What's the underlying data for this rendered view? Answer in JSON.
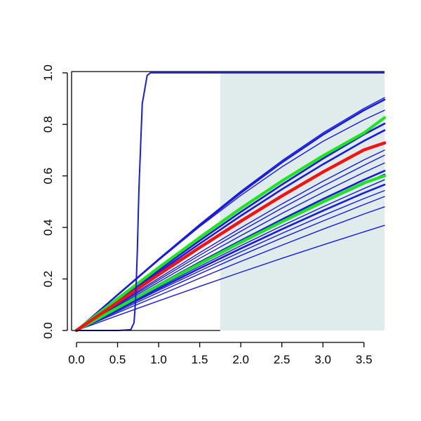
{
  "chart_data": {
    "type": "line",
    "title": "",
    "xlabel": "",
    "ylabel": "",
    "xlim": [
      -0.06,
      3.75
    ],
    "ylim": [
      0,
      1.005
    ],
    "x_ticks": [
      0.0,
      0.5,
      1.0,
      1.5,
      2.0,
      2.5,
      3.0,
      3.5
    ],
    "x_tick_labels": [
      "0.0",
      "0.5",
      "1.0",
      "1.5",
      "2.0",
      "2.5",
      "3.0",
      "3.5"
    ],
    "y_ticks": [
      0.0,
      0.2,
      0.4,
      0.6,
      0.8,
      1.0
    ],
    "y_tick_labels": [
      "0.0",
      "0.2",
      "0.4",
      "0.6",
      "0.8",
      "1.0"
    ],
    "grid": false,
    "legend": "none",
    "shaded_region": {
      "x_from": 1.75,
      "x_to": 3.75,
      "color": "#e0ecec"
    },
    "colors": {
      "blue": "#1a1adb",
      "green": "#1ee61e",
      "red": "#f01414"
    },
    "step_curve": {
      "color": "blue",
      "x": [
        0.0,
        0.5,
        0.66,
        0.7,
        0.72,
        0.74,
        0.76,
        0.8,
        0.86,
        0.9,
        1.0,
        3.75
      ],
      "values": [
        0.0,
        0.0,
        0.003,
        0.03,
        0.12,
        0.3,
        0.55,
        0.88,
        0.99,
        1.0,
        1.0,
        1.0
      ]
    },
    "series_x": [
      0.0,
      0.5,
      1.0,
      1.5,
      2.0,
      2.5,
      3.0,
      3.5,
      3.75
    ],
    "series": [
      {
        "color": "blue",
        "width": 1.4,
        "values": [
          0.0,
          0.138,
          0.273,
          0.403,
          0.524,
          0.635,
          0.734,
          0.818,
          0.855
        ]
      },
      {
        "color": "blue",
        "width": 1.4,
        "values": [
          0.0,
          0.14,
          0.278,
          0.412,
          0.54,
          0.659,
          0.767,
          0.862,
          0.904
        ]
      },
      {
        "color": "blue",
        "width": 2.6,
        "values": [
          0.0,
          0.138,
          0.275,
          0.408,
          0.534,
          0.652,
          0.76,
          0.855,
          0.896
        ]
      },
      {
        "color": "blue",
        "width": 2.6,
        "values": [
          0.0,
          0.114,
          0.227,
          0.337,
          0.445,
          0.548,
          0.645,
          0.736,
          0.777
        ]
      },
      {
        "color": "blue",
        "width": 2.6,
        "values": [
          0.0,
          0.118,
          0.235,
          0.349,
          0.46,
          0.566,
          0.667,
          0.761,
          0.803
        ]
      },
      {
        "color": "blue",
        "width": 1.4,
        "values": [
          0.0,
          0.099,
          0.196,
          0.292,
          0.385,
          0.475,
          0.56,
          0.641,
          0.68
        ]
      },
      {
        "color": "blue",
        "width": 1.4,
        "values": [
          0.0,
          0.095,
          0.188,
          0.28,
          0.368,
          0.454,
          0.536,
          0.614,
          0.65
        ]
      },
      {
        "color": "blue",
        "width": 1.4,
        "values": [
          0.0,
          0.102,
          0.203,
          0.302,
          0.398,
          0.491,
          0.579,
          0.662,
          0.7
        ]
      },
      {
        "color": "blue",
        "width": 2.6,
        "values": [
          0.0,
          0.087,
          0.173,
          0.258,
          0.34,
          0.42,
          0.497,
          0.57,
          0.605
        ]
      },
      {
        "color": "blue",
        "width": 2.6,
        "values": [
          0.0,
          0.09,
          0.178,
          0.265,
          0.349,
          0.431,
          0.51,
          0.585,
          0.62
        ]
      },
      {
        "color": "blue",
        "width": 1.4,
        "values": [
          0.0,
          0.078,
          0.156,
          0.231,
          0.305,
          0.377,
          0.446,
          0.512,
          0.543
        ]
      },
      {
        "color": "blue",
        "width": 1.4,
        "values": [
          0.0,
          0.074,
          0.148,
          0.22,
          0.291,
          0.359,
          0.425,
          0.489,
          0.52
        ]
      },
      {
        "color": "blue",
        "width": 2.6,
        "values": [
          0.0,
          0.082,
          0.162,
          0.241,
          0.318,
          0.393,
          0.465,
          0.534,
          0.566
        ]
      },
      {
        "color": "blue",
        "width": 1.4,
        "values": [
          0.0,
          0.085,
          0.168,
          0.249,
          0.329,
          0.406,
          0.48,
          0.551,
          0.585
        ]
      },
      {
        "color": "blue",
        "width": 1.4,
        "values": [
          0.0,
          0.069,
          0.136,
          0.203,
          0.268,
          0.331,
          0.393,
          0.452,
          0.48
        ]
      },
      {
        "color": "blue",
        "width": 1.4,
        "values": [
          0.0,
          0.058,
          0.115,
          0.171,
          0.226,
          0.28,
          0.332,
          0.383,
          0.408
        ]
      },
      {
        "color": "green",
        "width": 4.2,
        "values": [
          0.0,
          0.123,
          0.244,
          0.361,
          0.474,
          0.58,
          0.678,
          0.767,
          0.826
        ]
      },
      {
        "color": "green",
        "width": 4.2,
        "values": [
          0.0,
          0.088,
          0.175,
          0.259,
          0.342,
          0.422,
          0.499,
          0.573,
          0.6
        ]
      },
      {
        "color": "red",
        "width": 4.5,
        "values": [
          0.0,
          0.109,
          0.217,
          0.322,
          0.424,
          0.522,
          0.615,
          0.701,
          0.728
        ]
      }
    ]
  }
}
